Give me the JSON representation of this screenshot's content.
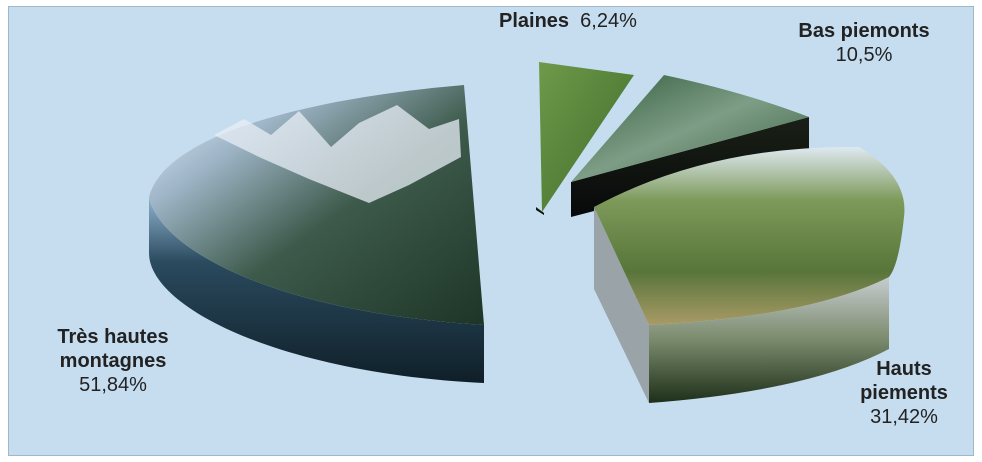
{
  "chart_data": {
    "type": "pie",
    "title": "",
    "slices": [
      {
        "label": "Plaines",
        "percent_text": "6,24%",
        "value": 6.24,
        "color": "#5e8a3c"
      },
      {
        "label": "Bas piemonts",
        "percent_text": "10,5%",
        "value": 10.5,
        "color": "#3f7a55"
      },
      {
        "label": "Hauts piements",
        "percent_text": "31,42%",
        "value": 31.42,
        "color": "#6f8c45"
      },
      {
        "label": "Très hautes montagnes",
        "percent_text": "51,84%",
        "value": 51.84,
        "color": "#3b5a78"
      }
    ],
    "exploded": true,
    "three_d": true,
    "legend": "none"
  },
  "labels": {
    "plaines": {
      "name": "Plaines",
      "pct": "6,24%"
    },
    "bas": {
      "name": "Bas piemonts",
      "pct": "10,5%"
    },
    "hauts": {
      "line1": "Hauts",
      "line2": "piements",
      "pct": "31,42%"
    },
    "tres": {
      "line1": "Très hautes",
      "line2": "montagnes",
      "pct": "51,84%"
    }
  }
}
